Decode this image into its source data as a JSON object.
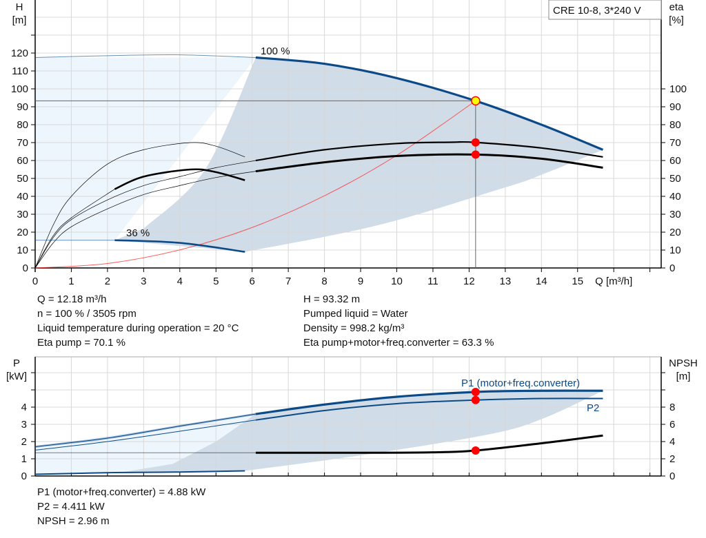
{
  "chart_data": [
    {
      "type": "line",
      "title": "CRE 10-8, 3*240 V",
      "xlabel": "Q [m³/h]",
      "ylabel_left": "H\n[m]",
      "ylabel_right": "eta\n[%]",
      "xlim": [
        0,
        17
      ],
      "ylim_left": [
        0,
        150
      ],
      "ylim_right": [
        0,
        150
      ],
      "x_ticks": [
        0,
        1,
        2,
        3,
        4,
        5,
        6,
        7,
        8,
        9,
        10,
        11,
        12,
        13,
        14,
        15
      ],
      "y_ticks_left": [
        0,
        10,
        20,
        30,
        40,
        50,
        60,
        70,
        80,
        90,
        100,
        110,
        120
      ],
      "y_ticks_right": [
        0,
        10,
        20,
        30,
        40,
        50,
        60,
        70,
        80,
        90,
        100
      ],
      "grid": true,
      "curve_labels": [
        "100 %",
        "36 %"
      ],
      "series": [
        {
          "id": "h100",
          "axis": "left",
          "color": "#0b4a87",
          "x": [
            0,
            2,
            4,
            6.1,
            8,
            10,
            12.18,
            14,
            15.7
          ],
          "y": [
            117.5,
            118.5,
            119,
            117.5,
            114,
            106,
            93.3,
            80,
            66
          ]
        },
        {
          "id": "h36",
          "axis": "left",
          "color": "#0b4a87",
          "x": [
            0,
            2.2,
            4,
            5.8
          ],
          "y": [
            15.5,
            15.5,
            14,
            9
          ]
        },
        {
          "id": "eta_pump",
          "axis": "right",
          "color": "#000000",
          "x": [
            0,
            0.5,
            1,
            2,
            3,
            4,
            5,
            6.1,
            8,
            10,
            11.5,
            12.18,
            14,
            15.7
          ],
          "y": [
            0,
            17,
            27,
            38,
            46,
            51,
            56,
            60,
            66,
            69.5,
            70.2,
            70.1,
            67,
            62
          ]
        },
        {
          "id": "eta_total",
          "axis": "right",
          "color": "#000000",
          "x": [
            0,
            0.5,
            1,
            2,
            3,
            4,
            5,
            6.1,
            8,
            10,
            12.18,
            14,
            15.7
          ],
          "y": [
            0,
            14,
            23,
            33,
            41,
            46,
            50.5,
            54,
            59,
            62.5,
            63.3,
            61,
            56
          ]
        },
        {
          "id": "eta_pump_36",
          "axis": "right",
          "color": "#000000",
          "x": [
            0,
            0.5,
            1,
            2,
            3,
            4.3,
            5,
            5.8
          ],
          "y": [
            0,
            24,
            40,
            58,
            66,
            70,
            68,
            62
          ]
        },
        {
          "id": "eta_total_36",
          "axis": "right",
          "color": "#000000",
          "x": [
            0,
            0.5,
            1,
            2.2,
            3,
            4.3,
            5,
            5.8
          ],
          "y": [
            0,
            18,
            28,
            44,
            51,
            55,
            53.5,
            49
          ]
        },
        {
          "id": "system",
          "axis": "left",
          "color": "#ff3333",
          "x": [
            0,
            2,
            4,
            6,
            8,
            10,
            12.18
          ],
          "y": [
            0,
            2.5,
            10.1,
            22.6,
            40.3,
            62.9,
            93.32
          ]
        }
      ],
      "operating_point": {
        "Q": 12.18,
        "H": 93.32,
        "eta_pump": 70.1,
        "eta_total": 63.3
      }
    },
    {
      "type": "line",
      "ylabel_left": "P\n[kW]",
      "ylabel_right": "NPSH\n[m]",
      "xlim": [
        0,
        17
      ],
      "ylim_left": [
        0,
        7
      ],
      "ylim_right": [
        0,
        14
      ],
      "y_ticks_left": [
        0,
        1,
        2,
        3,
        4
      ],
      "y_ticks_right": [
        0,
        2,
        4,
        6,
        8
      ],
      "grid": true,
      "series": [
        {
          "id": "p1",
          "name": "P1 (motor+freq.converter)",
          "axis": "left",
          "color": "#0b4a87",
          "x": [
            0,
            2,
            4,
            6.1,
            8,
            10,
            12.18,
            14,
            15.7
          ],
          "y": [
            1.7,
            2.2,
            2.9,
            3.6,
            4.15,
            4.6,
            4.88,
            4.95,
            4.95
          ]
        },
        {
          "id": "p2",
          "name": "P2",
          "axis": "left",
          "color": "#0b4a87",
          "x": [
            0,
            2,
            4,
            6.1,
            8,
            10,
            12.18,
            14,
            15.7
          ],
          "y": [
            1.5,
            2.0,
            2.6,
            3.25,
            3.8,
            4.2,
            4.411,
            4.5,
            4.5
          ]
        },
        {
          "id": "p36",
          "axis": "left",
          "color": "#0b4a87",
          "x": [
            0,
            2.2,
            4,
            5.8
          ],
          "y": [
            0.1,
            0.2,
            0.23,
            0.3
          ]
        },
        {
          "id": "npsh",
          "axis": "right",
          "color": "#000000",
          "x": [
            0,
            6.1,
            9,
            11,
            12.18,
            14,
            15.7
          ],
          "y": [
            2.7,
            2.7,
            2.7,
            2.75,
            2.96,
            3.8,
            4.7
          ]
        }
      ],
      "operating_point": {
        "P1": 4.88,
        "P2": 4.411,
        "NPSH": 2.96
      }
    }
  ],
  "info_top": {
    "left": [
      "Q = 12.18 m³/h",
      "n = 100 % / 3505 rpm",
      "Liquid temperature during operation = 20 °C",
      "Eta pump = 70.1 %"
    ],
    "right": [
      "H = 93.32 m",
      "Pumped liquid = Water",
      "Density = 998.2 kg/m³",
      "Eta pump+motor+freq.converter = 63.3 %"
    ]
  },
  "info_bottom": [
    "P1 (motor+freq.converter) = 4.88 kW",
    "P2 = 4.411 kW",
    "NPSH = 2.96 m"
  ],
  "colors": {
    "curve": "#0b4a87",
    "area_dark": "#d0dce7",
    "area_light": "#eef6fd",
    "point": "#ff0000",
    "point_highlight": "#ffff00"
  }
}
